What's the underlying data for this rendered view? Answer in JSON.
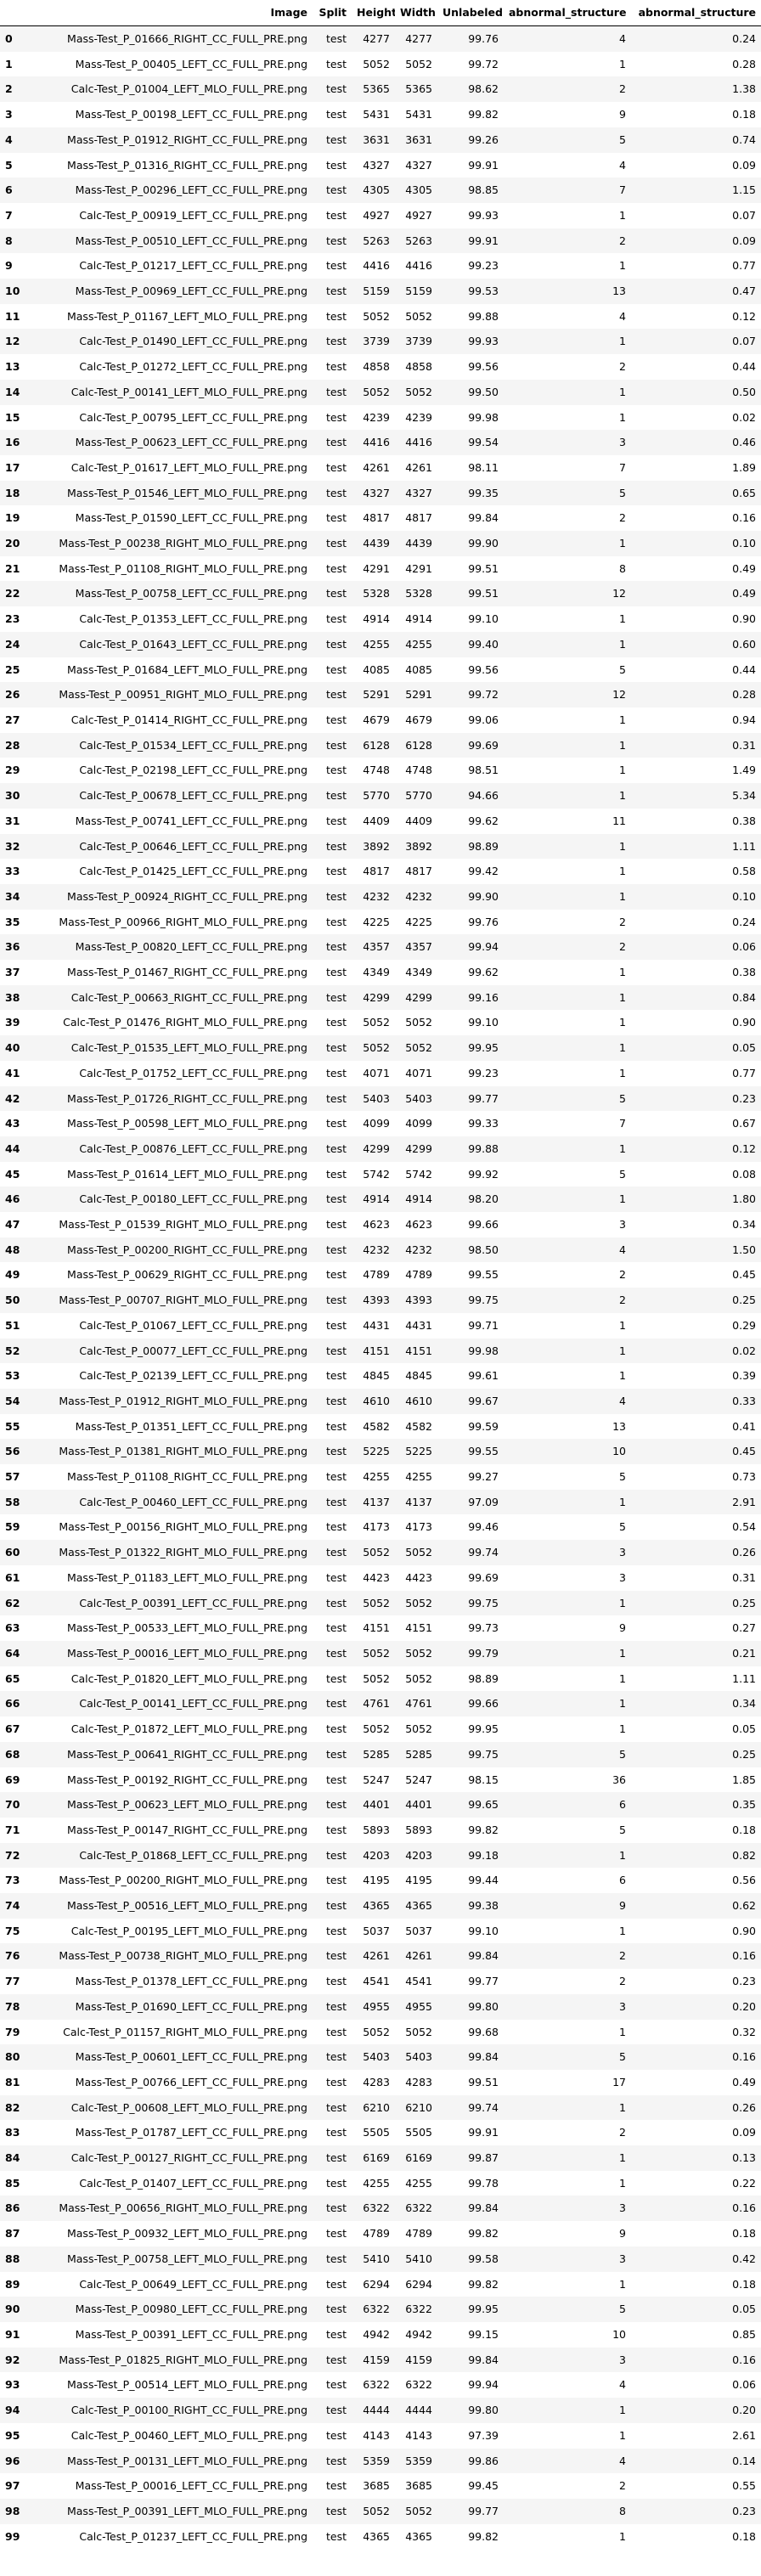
{
  "table": {
    "columns": [
      "",
      "Image",
      "Split",
      "Height",
      "Width",
      "Unlabeled",
      "abnormal_structure",
      "abnormal_structure"
    ],
    "rows": [
      [
        "0",
        "Mass-Test_P_01666_RIGHT_CC_FULL_PRE.png",
        "test",
        "4277",
        "4277",
        "99.76",
        "4",
        "0.24"
      ],
      [
        "1",
        "Mass-Test_P_00405_LEFT_CC_FULL_PRE.png",
        "test",
        "5052",
        "5052",
        "99.72",
        "1",
        "0.28"
      ],
      [
        "2",
        "Calc-Test_P_01004_LEFT_MLO_FULL_PRE.png",
        "test",
        "5365",
        "5365",
        "98.62",
        "2",
        "1.38"
      ],
      [
        "3",
        "Mass-Test_P_00198_LEFT_CC_FULL_PRE.png",
        "test",
        "5431",
        "5431",
        "99.82",
        "9",
        "0.18"
      ],
      [
        "4",
        "Mass-Test_P_01912_RIGHT_CC_FULL_PRE.png",
        "test",
        "3631",
        "3631",
        "99.26",
        "5",
        "0.74"
      ],
      [
        "5",
        "Mass-Test_P_01316_RIGHT_CC_FULL_PRE.png",
        "test",
        "4327",
        "4327",
        "99.91",
        "4",
        "0.09"
      ],
      [
        "6",
        "Mass-Test_P_00296_LEFT_CC_FULL_PRE.png",
        "test",
        "4305",
        "4305",
        "98.85",
        "7",
        "1.15"
      ],
      [
        "7",
        "Calc-Test_P_00919_LEFT_CC_FULL_PRE.png",
        "test",
        "4927",
        "4927",
        "99.93",
        "1",
        "0.07"
      ],
      [
        "8",
        "Mass-Test_P_00510_LEFT_CC_FULL_PRE.png",
        "test",
        "5263",
        "5263",
        "99.91",
        "2",
        "0.09"
      ],
      [
        "9",
        "Calc-Test_P_01217_LEFT_CC_FULL_PRE.png",
        "test",
        "4416",
        "4416",
        "99.23",
        "1",
        "0.77"
      ],
      [
        "10",
        "Mass-Test_P_00969_LEFT_CC_FULL_PRE.png",
        "test",
        "5159",
        "5159",
        "99.53",
        "13",
        "0.47"
      ],
      [
        "11",
        "Mass-Test_P_01167_LEFT_MLO_FULL_PRE.png",
        "test",
        "5052",
        "5052",
        "99.88",
        "4",
        "0.12"
      ],
      [
        "12",
        "Calc-Test_P_01490_LEFT_CC_FULL_PRE.png",
        "test",
        "3739",
        "3739",
        "99.93",
        "1",
        "0.07"
      ],
      [
        "13",
        "Calc-Test_P_01272_LEFT_CC_FULL_PRE.png",
        "test",
        "4858",
        "4858",
        "99.56",
        "2",
        "0.44"
      ],
      [
        "14",
        "Calc-Test_P_00141_LEFT_MLO_FULL_PRE.png",
        "test",
        "5052",
        "5052",
        "99.50",
        "1",
        "0.50"
      ],
      [
        "15",
        "Calc-Test_P_00795_LEFT_CC_FULL_PRE.png",
        "test",
        "4239",
        "4239",
        "99.98",
        "1",
        "0.02"
      ],
      [
        "16",
        "Mass-Test_P_00623_LEFT_CC_FULL_PRE.png",
        "test",
        "4416",
        "4416",
        "99.54",
        "3",
        "0.46"
      ],
      [
        "17",
        "Calc-Test_P_01617_LEFT_MLO_FULL_PRE.png",
        "test",
        "4261",
        "4261",
        "98.11",
        "7",
        "1.89"
      ],
      [
        "18",
        "Mass-Test_P_01546_LEFT_MLO_FULL_PRE.png",
        "test",
        "4327",
        "4327",
        "99.35",
        "5",
        "0.65"
      ],
      [
        "19",
        "Mass-Test_P_01590_LEFT_CC_FULL_PRE.png",
        "test",
        "4817",
        "4817",
        "99.84",
        "2",
        "0.16"
      ],
      [
        "20",
        "Mass-Test_P_00238_RIGHT_MLO_FULL_PRE.png",
        "test",
        "4439",
        "4439",
        "99.90",
        "1",
        "0.10"
      ],
      [
        "21",
        "Mass-Test_P_01108_RIGHT_MLO_FULL_PRE.png",
        "test",
        "4291",
        "4291",
        "99.51",
        "8",
        "0.49"
      ],
      [
        "22",
        "Mass-Test_P_00758_LEFT_CC_FULL_PRE.png",
        "test",
        "5328",
        "5328",
        "99.51",
        "12",
        "0.49"
      ],
      [
        "23",
        "Calc-Test_P_01353_LEFT_CC_FULL_PRE.png",
        "test",
        "4914",
        "4914",
        "99.10",
        "1",
        "0.90"
      ],
      [
        "24",
        "Calc-Test_P_01643_LEFT_CC_FULL_PRE.png",
        "test",
        "4255",
        "4255",
        "99.40",
        "1",
        "0.60"
      ],
      [
        "25",
        "Mass-Test_P_01684_LEFT_MLO_FULL_PRE.png",
        "test",
        "4085",
        "4085",
        "99.56",
        "5",
        "0.44"
      ],
      [
        "26",
        "Mass-Test_P_00951_RIGHT_MLO_FULL_PRE.png",
        "test",
        "5291",
        "5291",
        "99.72",
        "12",
        "0.28"
      ],
      [
        "27",
        "Calc-Test_P_01414_RIGHT_CC_FULL_PRE.png",
        "test",
        "4679",
        "4679",
        "99.06",
        "1",
        "0.94"
      ],
      [
        "28",
        "Calc-Test_P_01534_LEFT_CC_FULL_PRE.png",
        "test",
        "6128",
        "6128",
        "99.69",
        "1",
        "0.31"
      ],
      [
        "29",
        "Calc-Test_P_02198_LEFT_CC_FULL_PRE.png",
        "test",
        "4748",
        "4748",
        "98.51",
        "1",
        "1.49"
      ],
      [
        "30",
        "Calc-Test_P_00678_LEFT_CC_FULL_PRE.png",
        "test",
        "5770",
        "5770",
        "94.66",
        "1",
        "5.34"
      ],
      [
        "31",
        "Mass-Test_P_00741_LEFT_CC_FULL_PRE.png",
        "test",
        "4409",
        "4409",
        "99.62",
        "11",
        "0.38"
      ],
      [
        "32",
        "Calc-Test_P_00646_LEFT_CC_FULL_PRE.png",
        "test",
        "3892",
        "3892",
        "98.89",
        "1",
        "1.11"
      ],
      [
        "33",
        "Calc-Test_P_01425_LEFT_CC_FULL_PRE.png",
        "test",
        "4817",
        "4817",
        "99.42",
        "1",
        "0.58"
      ],
      [
        "34",
        "Mass-Test_P_00924_RIGHT_CC_FULL_PRE.png",
        "test",
        "4232",
        "4232",
        "99.90",
        "1",
        "0.10"
      ],
      [
        "35",
        "Mass-Test_P_00966_RIGHT_MLO_FULL_PRE.png",
        "test",
        "4225",
        "4225",
        "99.76",
        "2",
        "0.24"
      ],
      [
        "36",
        "Mass-Test_P_00820_LEFT_CC_FULL_PRE.png",
        "test",
        "4357",
        "4357",
        "99.94",
        "2",
        "0.06"
      ],
      [
        "37",
        "Mass-Test_P_01467_RIGHT_CC_FULL_PRE.png",
        "test",
        "4349",
        "4349",
        "99.62",
        "1",
        "0.38"
      ],
      [
        "38",
        "Calc-Test_P_00663_RIGHT_CC_FULL_PRE.png",
        "test",
        "4299",
        "4299",
        "99.16",
        "1",
        "0.84"
      ],
      [
        "39",
        "Calc-Test_P_01476_RIGHT_MLO_FULL_PRE.png",
        "test",
        "5052",
        "5052",
        "99.10",
        "1",
        "0.90"
      ],
      [
        "40",
        "Calc-Test_P_01535_LEFT_MLO_FULL_PRE.png",
        "test",
        "5052",
        "5052",
        "99.95",
        "1",
        "0.05"
      ],
      [
        "41",
        "Calc-Test_P_01752_LEFT_CC_FULL_PRE.png",
        "test",
        "4071",
        "4071",
        "99.23",
        "1",
        "0.77"
      ],
      [
        "42",
        "Mass-Test_P_01726_RIGHT_CC_FULL_PRE.png",
        "test",
        "5403",
        "5403",
        "99.77",
        "5",
        "0.23"
      ],
      [
        "43",
        "Mass-Test_P_00598_LEFT_MLO_FULL_PRE.png",
        "test",
        "4099",
        "4099",
        "99.33",
        "7",
        "0.67"
      ],
      [
        "44",
        "Calc-Test_P_00876_LEFT_CC_FULL_PRE.png",
        "test",
        "4299",
        "4299",
        "99.88",
        "1",
        "0.12"
      ],
      [
        "45",
        "Mass-Test_P_01614_LEFT_MLO_FULL_PRE.png",
        "test",
        "5742",
        "5742",
        "99.92",
        "5",
        "0.08"
      ],
      [
        "46",
        "Calc-Test_P_00180_LEFT_CC_FULL_PRE.png",
        "test",
        "4914",
        "4914",
        "98.20",
        "1",
        "1.80"
      ],
      [
        "47",
        "Mass-Test_P_01539_RIGHT_MLO_FULL_PRE.png",
        "test",
        "4623",
        "4623",
        "99.66",
        "3",
        "0.34"
      ],
      [
        "48",
        "Mass-Test_P_00200_RIGHT_CC_FULL_PRE.png",
        "test",
        "4232",
        "4232",
        "98.50",
        "4",
        "1.50"
      ],
      [
        "49",
        "Mass-Test_P_00629_RIGHT_CC_FULL_PRE.png",
        "test",
        "4789",
        "4789",
        "99.55",
        "2",
        "0.45"
      ],
      [
        "50",
        "Mass-Test_P_00707_RIGHT_MLO_FULL_PRE.png",
        "test",
        "4393",
        "4393",
        "99.75",
        "2",
        "0.25"
      ],
      [
        "51",
        "Calc-Test_P_01067_LEFT_CC_FULL_PRE.png",
        "test",
        "4431",
        "4431",
        "99.71",
        "1",
        "0.29"
      ],
      [
        "52",
        "Calc-Test_P_00077_LEFT_CC_FULL_PRE.png",
        "test",
        "4151",
        "4151",
        "99.98",
        "1",
        "0.02"
      ],
      [
        "53",
        "Calc-Test_P_02139_LEFT_CC_FULL_PRE.png",
        "test",
        "4845",
        "4845",
        "99.61",
        "1",
        "0.39"
      ],
      [
        "54",
        "Mass-Test_P_01912_RIGHT_MLO_FULL_PRE.png",
        "test",
        "4610",
        "4610",
        "99.67",
        "4",
        "0.33"
      ],
      [
        "55",
        "Mass-Test_P_01351_LEFT_CC_FULL_PRE.png",
        "test",
        "4582",
        "4582",
        "99.59",
        "13",
        "0.41"
      ],
      [
        "56",
        "Mass-Test_P_01381_RIGHT_MLO_FULL_PRE.png",
        "test",
        "5225",
        "5225",
        "99.55",
        "10",
        "0.45"
      ],
      [
        "57",
        "Mass-Test_P_01108_RIGHT_CC_FULL_PRE.png",
        "test",
        "4255",
        "4255",
        "99.27",
        "5",
        "0.73"
      ],
      [
        "58",
        "Calc-Test_P_00460_LEFT_CC_FULL_PRE.png",
        "test",
        "4137",
        "4137",
        "97.09",
        "1",
        "2.91"
      ],
      [
        "59",
        "Mass-Test_P_00156_RIGHT_MLO_FULL_PRE.png",
        "test",
        "4173",
        "4173",
        "99.46",
        "5",
        "0.54"
      ],
      [
        "60",
        "Mass-Test_P_01322_RIGHT_MLO_FULL_PRE.png",
        "test",
        "5052",
        "5052",
        "99.74",
        "3",
        "0.26"
      ],
      [
        "61",
        "Mass-Test_P_01183_LEFT_MLO_FULL_PRE.png",
        "test",
        "4423",
        "4423",
        "99.69",
        "3",
        "0.31"
      ],
      [
        "62",
        "Calc-Test_P_00391_LEFT_CC_FULL_PRE.png",
        "test",
        "5052",
        "5052",
        "99.75",
        "1",
        "0.25"
      ],
      [
        "63",
        "Mass-Test_P_00533_LEFT_MLO_FULL_PRE.png",
        "test",
        "4151",
        "4151",
        "99.73",
        "9",
        "0.27"
      ],
      [
        "64",
        "Mass-Test_P_00016_LEFT_MLO_FULL_PRE.png",
        "test",
        "5052",
        "5052",
        "99.79",
        "1",
        "0.21"
      ],
      [
        "65",
        "Calc-Test_P_01820_LEFT_MLO_FULL_PRE.png",
        "test",
        "5052",
        "5052",
        "98.89",
        "1",
        "1.11"
      ],
      [
        "66",
        "Calc-Test_P_00141_LEFT_CC_FULL_PRE.png",
        "test",
        "4761",
        "4761",
        "99.66",
        "1",
        "0.34"
      ],
      [
        "67",
        "Calc-Test_P_01872_LEFT_MLO_FULL_PRE.png",
        "test",
        "5052",
        "5052",
        "99.95",
        "1",
        "0.05"
      ],
      [
        "68",
        "Mass-Test_P_00641_RIGHT_CC_FULL_PRE.png",
        "test",
        "5285",
        "5285",
        "99.75",
        "5",
        "0.25"
      ],
      [
        "69",
        "Mass-Test_P_00192_RIGHT_CC_FULL_PRE.png",
        "test",
        "5247",
        "5247",
        "98.15",
        "36",
        "1.85"
      ],
      [
        "70",
        "Mass-Test_P_00623_LEFT_MLO_FULL_PRE.png",
        "test",
        "4401",
        "4401",
        "99.65",
        "6",
        "0.35"
      ],
      [
        "71",
        "Mass-Test_P_00147_RIGHT_CC_FULL_PRE.png",
        "test",
        "5893",
        "5893",
        "99.82",
        "5",
        "0.18"
      ],
      [
        "72",
        "Calc-Test_P_01868_LEFT_CC_FULL_PRE.png",
        "test",
        "4203",
        "4203",
        "99.18",
        "1",
        "0.82"
      ],
      [
        "73",
        "Mass-Test_P_00200_RIGHT_MLO_FULL_PRE.png",
        "test",
        "4195",
        "4195",
        "99.44",
        "6",
        "0.56"
      ],
      [
        "74",
        "Mass-Test_P_00516_LEFT_MLO_FULL_PRE.png",
        "test",
        "4365",
        "4365",
        "99.38",
        "9",
        "0.62"
      ],
      [
        "75",
        "Calc-Test_P_00195_LEFT_MLO_FULL_PRE.png",
        "test",
        "5037",
        "5037",
        "99.10",
        "1",
        "0.90"
      ],
      [
        "76",
        "Mass-Test_P_00738_RIGHT_MLO_FULL_PRE.png",
        "test",
        "4261",
        "4261",
        "99.84",
        "2",
        "0.16"
      ],
      [
        "77",
        "Mass-Test_P_01378_LEFT_CC_FULL_PRE.png",
        "test",
        "4541",
        "4541",
        "99.77",
        "2",
        "0.23"
      ],
      [
        "78",
        "Mass-Test_P_01690_LEFT_CC_FULL_PRE.png",
        "test",
        "4955",
        "4955",
        "99.80",
        "3",
        "0.20"
      ],
      [
        "79",
        "Calc-Test_P_01157_RIGHT_MLO_FULL_PRE.png",
        "test",
        "5052",
        "5052",
        "99.68",
        "1",
        "0.32"
      ],
      [
        "80",
        "Mass-Test_P_00601_LEFT_CC_FULL_PRE.png",
        "test",
        "5403",
        "5403",
        "99.84",
        "5",
        "0.16"
      ],
      [
        "81",
        "Mass-Test_P_00766_LEFT_CC_FULL_PRE.png",
        "test",
        "4283",
        "4283",
        "99.51",
        "17",
        "0.49"
      ],
      [
        "82",
        "Calc-Test_P_00608_LEFT_MLO_FULL_PRE.png",
        "test",
        "6210",
        "6210",
        "99.74",
        "1",
        "0.26"
      ],
      [
        "83",
        "Mass-Test_P_01787_LEFT_CC_FULL_PRE.png",
        "test",
        "5505",
        "5505",
        "99.91",
        "2",
        "0.09"
      ],
      [
        "84",
        "Calc-Test_P_00127_RIGHT_CC_FULL_PRE.png",
        "test",
        "6169",
        "6169",
        "99.87",
        "1",
        "0.13"
      ],
      [
        "85",
        "Calc-Test_P_01407_LEFT_CC_FULL_PRE.png",
        "test",
        "4255",
        "4255",
        "99.78",
        "1",
        "0.22"
      ],
      [
        "86",
        "Mass-Test_P_00656_RIGHT_MLO_FULL_PRE.png",
        "test",
        "6322",
        "6322",
        "99.84",
        "3",
        "0.16"
      ],
      [
        "87",
        "Mass-Test_P_00932_LEFT_MLO_FULL_PRE.png",
        "test",
        "4789",
        "4789",
        "99.82",
        "9",
        "0.18"
      ],
      [
        "88",
        "Mass-Test_P_00758_LEFT_MLO_FULL_PRE.png",
        "test",
        "5410",
        "5410",
        "99.58",
        "3",
        "0.42"
      ],
      [
        "89",
        "Calc-Test_P_00649_LEFT_CC_FULL_PRE.png",
        "test",
        "6294",
        "6294",
        "99.82",
        "1",
        "0.18"
      ],
      [
        "90",
        "Mass-Test_P_00980_LEFT_CC_FULL_PRE.png",
        "test",
        "6322",
        "6322",
        "99.95",
        "5",
        "0.05"
      ],
      [
        "91",
        "Mass-Test_P_00391_LEFT_CC_FULL_PRE.png",
        "test",
        "4942",
        "4942",
        "99.15",
        "10",
        "0.85"
      ],
      [
        "92",
        "Mass-Test_P_01825_RIGHT_MLO_FULL_PRE.png",
        "test",
        "4159",
        "4159",
        "99.84",
        "3",
        "0.16"
      ],
      [
        "93",
        "Mass-Test_P_00514_LEFT_MLO_FULL_PRE.png",
        "test",
        "6322",
        "6322",
        "99.94",
        "4",
        "0.06"
      ],
      [
        "94",
        "Calc-Test_P_00100_RIGHT_CC_FULL_PRE.png",
        "test",
        "4444",
        "4444",
        "99.80",
        "1",
        "0.20"
      ],
      [
        "95",
        "Calc-Test_P_00460_LEFT_MLO_FULL_PRE.png",
        "test",
        "4143",
        "4143",
        "97.39",
        "1",
        "2.61"
      ],
      [
        "96",
        "Mass-Test_P_00131_LEFT_MLO_FULL_PRE.png",
        "test",
        "5359",
        "5359",
        "99.86",
        "4",
        "0.14"
      ],
      [
        "97",
        "Mass-Test_P_00016_LEFT_CC_FULL_PRE.png",
        "test",
        "3685",
        "3685",
        "99.45",
        "2",
        "0.55"
      ],
      [
        "98",
        "Mass-Test_P_00391_LEFT_MLO_FULL_PRE.png",
        "test",
        "5052",
        "5052",
        "99.77",
        "8",
        "0.23"
      ],
      [
        "99",
        "Calc-Test_P_01237_LEFT_CC_FULL_PRE.png",
        "test",
        "4365",
        "4365",
        "99.82",
        "1",
        "0.18"
      ]
    ]
  }
}
